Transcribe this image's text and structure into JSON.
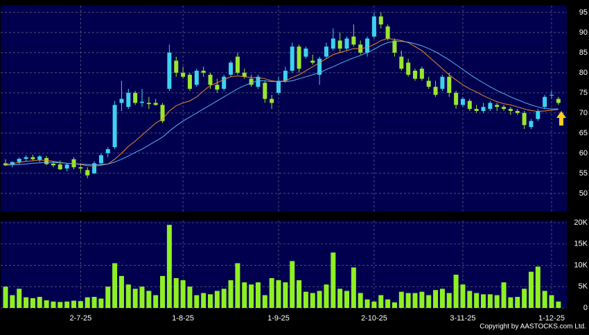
{
  "chart_data": [
    {
      "type": "candlestick",
      "categories": [
        null,
        null,
        null,
        null,
        null,
        null,
        null,
        null,
        null,
        null,
        null,
        "2-7-25",
        null,
        null,
        null,
        null,
        null,
        null,
        null,
        null,
        null,
        null,
        null,
        null,
        null,
        null,
        "1-8-25",
        null,
        null,
        null,
        null,
        null,
        null,
        null,
        null,
        null,
        null,
        null,
        null,
        null,
        "1-9-25",
        null,
        null,
        null,
        null,
        null,
        null,
        null,
        null,
        null,
        null,
        null,
        null,
        null,
        "2-10-25",
        null,
        null,
        null,
        null,
        null,
        null,
        null,
        null,
        null,
        null,
        null,
        null,
        "3-11-25",
        null,
        null,
        null,
        null,
        null,
        null,
        null,
        null,
        null,
        null,
        null,
        null,
        "1-12-25",
        null
      ],
      "open": [
        57.5,
        57.2,
        57.8,
        58.6,
        59.0,
        58.4,
        58.8,
        57.4,
        57.2,
        56.2,
        58.5,
        56.5,
        55.8,
        55.0,
        57.5,
        60.0,
        61.5,
        72.5,
        71.5,
        75.0,
        72.5,
        72.5,
        72.5,
        72.0,
        76.0,
        83.0,
        80.0,
        79.5,
        77.0,
        80.5,
        79.5,
        77.0,
        76.0,
        79.5,
        84.0,
        80.0,
        78.5,
        76.5,
        77.5,
        73.5,
        75.0,
        78.0,
        80.5,
        86.5,
        84.0,
        83.0,
        79.5,
        84.0,
        86.0,
        88.0,
        86.0,
        89.0,
        87.0,
        85.0,
        89.0,
        94.0,
        91.5,
        88.0,
        84.0,
        82.5,
        80.5,
        81.0,
        78.0,
        76.5,
        76.0,
        79.0,
        75.0,
        72.0,
        73.0,
        71.0,
        70.5,
        71.0,
        72.0,
        71.5,
        71.0,
        70.5,
        70.0,
        66.5,
        68.5,
        71.5,
        74.5,
        73.5
      ],
      "high": [
        58.5,
        58.0,
        59.0,
        59.5,
        59.6,
        59.5,
        59.3,
        58.0,
        58.2,
        57.5,
        59.0,
        57.5,
        56.5,
        58.0,
        60.0,
        61.5,
        73.0,
        78.0,
        76.0,
        75.5,
        76.0,
        74.0,
        73.5,
        72.5,
        87.0,
        84.0,
        81.5,
        80.0,
        81.0,
        81.5,
        80.0,
        78.5,
        79.5,
        83.0,
        85.0,
        81.0,
        79.5,
        79.5,
        78.0,
        74.5,
        79.0,
        81.5,
        87.5,
        87.0,
        86.5,
        84.5,
        84.0,
        87.5,
        91.0,
        90.0,
        89.0,
        92.0,
        88.0,
        89.0,
        95.0,
        95.0,
        92.0,
        88.5,
        85.5,
        83.5,
        81.0,
        81.5,
        79.0,
        78.0,
        79.5,
        80.0,
        75.5,
        74.0,
        73.5,
        72.0,
        72.5,
        73.0,
        72.5,
        72.0,
        71.5,
        71.0,
        70.5,
        68.5,
        71.0,
        74.5,
        75.5,
        74.0
      ],
      "low": [
        56.8,
        56.5,
        57.2,
        58.0,
        58.2,
        57.8,
        57.0,
        56.5,
        55.8,
        55.5,
        56.0,
        55.2,
        53.8,
        54.8,
        57.0,
        59.0,
        61.0,
        70.5,
        71.0,
        72.0,
        71.5,
        71.0,
        71.8,
        67.5,
        75.5,
        79.0,
        78.5,
        75.5,
        76.5,
        79.0,
        76.0,
        75.0,
        75.5,
        79.0,
        79.5,
        78.5,
        76.5,
        76.0,
        72.5,
        71.0,
        74.5,
        77.5,
        80.0,
        80.0,
        83.5,
        82.0,
        77.0,
        83.5,
        85.5,
        85.0,
        85.5,
        86.5,
        84.5,
        84.0,
        88.5,
        91.0,
        88.0,
        84.0,
        80.5,
        79.0,
        78.0,
        78.0,
        76.0,
        74.0,
        75.5,
        74.0,
        71.0,
        71.5,
        70.5,
        70.0,
        70.0,
        70.5,
        70.5,
        70.5,
        69.5,
        69.5,
        66.0,
        66.0,
        68.0,
        71.0,
        73.5,
        72.0
      ],
      "close": [
        57.0,
        57.8,
        58.6,
        59.0,
        58.5,
        59.2,
        57.3,
        57.0,
        56.0,
        57.2,
        56.5,
        56.2,
        54.5,
        57.5,
        59.5,
        61.0,
        72.0,
        73.5,
        75.0,
        72.5,
        72.8,
        72.2,
        72.0,
        68.0,
        85.0,
        80.0,
        79.0,
        76.0,
        80.5,
        80.0,
        77.0,
        75.8,
        79.0,
        82.5,
        80.0,
        79.0,
        77.0,
        79.0,
        73.5,
        72.5,
        78.0,
        80.5,
        86.5,
        81.0,
        86.0,
        82.5,
        83.5,
        86.5,
        88.5,
        86.0,
        88.5,
        87.0,
        85.0,
        88.5,
        94.0,
        92.0,
        88.5,
        85.0,
        81.0,
        79.5,
        78.5,
        78.5,
        76.5,
        74.5,
        79.0,
        75.0,
        72.0,
        73.5,
        71.0,
        70.5,
        71.5,
        72.5,
        71.5,
        71.0,
        70.5,
        70.0,
        67.0,
        68.0,
        70.5,
        74.0,
        74.5,
        72.5
      ],
      "up_color": "#3cd2f0",
      "down_color": "#9ae62e",
      "series": [
        {
          "color": "#e8892c",
          "values": [
            57.2,
            57.4,
            57.7,
            58.0,
            58.1,
            58.3,
            58.2,
            58.0,
            57.7,
            57.5,
            57.4,
            57.2,
            56.9,
            56.8,
            57.0,
            57.3,
            58.5,
            60.0,
            61.7,
            63.0,
            64.5,
            66.0,
            67.5,
            68.5,
            70.5,
            71.8,
            72.5,
            73.0,
            74.0,
            75.5,
            76.8,
            77.5,
            78.3,
            79.0,
            79.2,
            79.0,
            78.8,
            78.8,
            78.5,
            78.0,
            77.8,
            78.0,
            78.8,
            79.5,
            80.5,
            81.5,
            82.5,
            83.5,
            84.5,
            85.0,
            85.5,
            86.0,
            86.0,
            86.3,
            87.0,
            88.0,
            88.5,
            88.3,
            88.0,
            87.5,
            86.5,
            85.5,
            84.0,
            82.5,
            81.0,
            79.5,
            78.2,
            77.0,
            76.0,
            75.2,
            74.3,
            73.5,
            72.8,
            72.3,
            72.0,
            71.5,
            71.0,
            70.6,
            70.4,
            70.5,
            70.7,
            70.9
          ]
        },
        {
          "color": "#5ab4f0",
          "values": [
            57.0,
            57.1,
            57.2,
            57.3,
            57.5,
            57.6,
            57.7,
            57.7,
            57.6,
            57.5,
            57.4,
            57.3,
            57.2,
            57.1,
            57.2,
            57.3,
            57.8,
            58.5,
            59.3,
            60.2,
            61.0,
            62.0,
            63.0,
            64.0,
            65.5,
            66.8,
            68.0,
            69.0,
            70.0,
            71.0,
            72.0,
            73.0,
            74.0,
            75.0,
            76.0,
            76.8,
            77.5,
            78.0,
            78.0,
            77.8,
            77.8,
            77.8,
            78.0,
            78.5,
            79.0,
            79.5,
            80.0,
            80.8,
            81.5,
            82.3,
            83.0,
            83.7,
            84.3,
            85.0,
            85.8,
            86.8,
            87.5,
            87.8,
            87.8,
            87.6,
            87.2,
            86.7,
            86.0,
            85.2,
            84.2,
            83.2,
            82.0,
            80.8,
            79.6,
            78.5,
            77.5,
            76.5,
            75.6,
            74.8,
            74.0,
            73.3,
            72.6,
            72.0,
            71.5,
            71.1,
            71.0,
            71.0
          ]
        }
      ],
      "ylim": [
        45.5,
        96.7
      ],
      "yticks": [
        50,
        55,
        60,
        65,
        70,
        75,
        80,
        85,
        90,
        95
      ],
      "grid": true
    },
    {
      "type": "bar",
      "color": "#8ef022",
      "values": [
        5000,
        3000,
        4500,
        2500,
        2300,
        2600,
        1800,
        1500,
        1400,
        1500,
        1700,
        1600,
        2500,
        2600,
        2200,
        5000,
        10500,
        7500,
        5500,
        4500,
        5000,
        4000,
        3000,
        7500,
        19500,
        7000,
        6500,
        5000,
        3000,
        3500,
        3200,
        4000,
        4500,
        6500,
        10500,
        6000,
        5500,
        6000,
        3000,
        7000,
        6500,
        6000,
        11000,
        6500,
        3800,
        3500,
        4000,
        5500,
        13000,
        4500,
        4000,
        9500,
        3500,
        2000,
        1500,
        3000,
        2000,
        1300,
        3800,
        3500,
        3500,
        3800,
        3000,
        4200,
        4500,
        3500,
        7800,
        5500,
        4000,
        3500,
        3200,
        3200,
        3000,
        6000,
        2500,
        2600,
        4500,
        8500,
        9700,
        4000,
        3000,
        1500
      ],
      "ylim": [
        0,
        20500
      ],
      "yticks": [
        0,
        {
          "value": 5000,
          "label": "5K"
        },
        {
          "value": 10000,
          "label": "10K"
        },
        {
          "value": 15000,
          "label": "15K"
        },
        {
          "value": 20000,
          "label": "20K"
        }
      ],
      "grid": true
    }
  ],
  "copyright": "Copyright by AASTOCKS.com Ltd."
}
